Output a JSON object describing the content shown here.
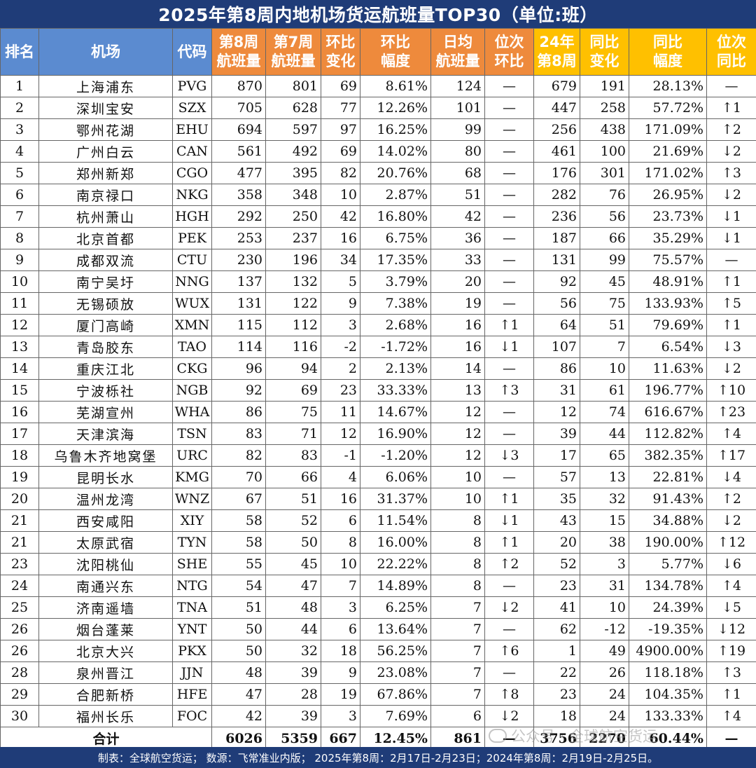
{
  "title": "2025年第8周内地机场货运航班量TOP30（单位:班）",
  "headers": [
    "排名",
    "机场",
    "代码",
    "第8周航班量",
    "第7周航班量",
    "环比变化",
    "环比幅度",
    "日均航班量",
    "位次环比",
    "24年第8周",
    "同比变化",
    "同比幅度",
    "位次同比"
  ],
  "header_lines": [
    [
      "排名"
    ],
    [
      "机场"
    ],
    [
      "代码"
    ],
    [
      "第8周",
      "航班量"
    ],
    [
      "第7周",
      "航班量"
    ],
    [
      "环比",
      "变化"
    ],
    [
      "环比",
      "幅度"
    ],
    [
      "日均",
      "航班量"
    ],
    [
      "位次",
      "环比"
    ],
    [
      "24年",
      "第8周"
    ],
    [
      "同比",
      "变化"
    ],
    [
      "同比",
      "幅度"
    ],
    [
      "位次",
      "同比"
    ]
  ],
  "colors": {
    "title_bg": "#1f3c78",
    "header_blue": "#5b8bd0",
    "header_orange": "#ee8a3c",
    "header_yellow": "#ffc000",
    "up": "#e0201a",
    "down": "#1ea84c"
  },
  "rows": [
    [
      "1",
      "上海浦东",
      "PVG",
      "870",
      "801",
      "69",
      "8.61%",
      "124",
      "—",
      "679",
      "191",
      "28.13%",
      "—"
    ],
    [
      "2",
      "深圳宝安",
      "SZX",
      "705",
      "628",
      "77",
      "12.26%",
      "101",
      "—",
      "447",
      "258",
      "57.72%",
      "↑1"
    ],
    [
      "3",
      "鄂州花湖",
      "EHU",
      "694",
      "597",
      "97",
      "16.25%",
      "99",
      "—",
      "256",
      "438",
      "171.09%",
      "↑2"
    ],
    [
      "4",
      "广州白云",
      "CAN",
      "561",
      "492",
      "69",
      "14.02%",
      "80",
      "—",
      "461",
      "100",
      "21.69%",
      "↓2"
    ],
    [
      "5",
      "郑州新郑",
      "CGO",
      "477",
      "395",
      "82",
      "20.76%",
      "68",
      "—",
      "176",
      "301",
      "171.02%",
      "↑3"
    ],
    [
      "6",
      "南京禄口",
      "NKG",
      "358",
      "348",
      "10",
      "2.87%",
      "51",
      "—",
      "282",
      "76",
      "26.95%",
      "↓2"
    ],
    [
      "7",
      "杭州萧山",
      "HGH",
      "292",
      "250",
      "42",
      "16.80%",
      "42",
      "—",
      "236",
      "56",
      "23.73%",
      "↓1"
    ],
    [
      "8",
      "北京首都",
      "PEK",
      "253",
      "237",
      "16",
      "6.75%",
      "36",
      "—",
      "187",
      "66",
      "35.29%",
      "↓1"
    ],
    [
      "9",
      "成都双流",
      "CTU",
      "230",
      "196",
      "34",
      "17.35%",
      "33",
      "—",
      "131",
      "99",
      "75.57%",
      "—"
    ],
    [
      "10",
      "南宁吴圩",
      "NNG",
      "137",
      "132",
      "5",
      "3.79%",
      "20",
      "—",
      "92",
      "45",
      "48.91%",
      "↑1"
    ],
    [
      "11",
      "无锡硕放",
      "WUX",
      "131",
      "122",
      "9",
      "7.38%",
      "19",
      "—",
      "56",
      "75",
      "133.93%",
      "↑5"
    ],
    [
      "12",
      "厦门高崎",
      "XMN",
      "115",
      "112",
      "3",
      "2.68%",
      "16",
      "↑1",
      "64",
      "51",
      "79.69%",
      "↑1"
    ],
    [
      "13",
      "青岛胶东",
      "TAO",
      "114",
      "116",
      "-2",
      "-1.72%",
      "16",
      "↓1",
      "107",
      "7",
      "6.54%",
      "↓3"
    ],
    [
      "14",
      "重庆江北",
      "CKG",
      "96",
      "94",
      "2",
      "2.13%",
      "14",
      "—",
      "86",
      "10",
      "11.63%",
      "↓2"
    ],
    [
      "15",
      "宁波栎社",
      "NGB",
      "92",
      "69",
      "23",
      "33.33%",
      "13",
      "↑3",
      "31",
      "61",
      "196.77%",
      "↑10"
    ],
    [
      "16",
      "芜湖宣州",
      "WHA",
      "86",
      "75",
      "11",
      "14.67%",
      "12",
      "—",
      "12",
      "74",
      "616.67%",
      "↑23"
    ],
    [
      "17",
      "天津滨海",
      "TSN",
      "83",
      "71",
      "12",
      "16.90%",
      "12",
      "—",
      "39",
      "44",
      "112.82%",
      "↑4"
    ],
    [
      "18",
      "乌鲁木齐地窝堡",
      "URC",
      "82",
      "83",
      "-1",
      "-1.20%",
      "12",
      "↓3",
      "17",
      "65",
      "382.35%",
      "↑17"
    ],
    [
      "19",
      "昆明长水",
      "KMG",
      "70",
      "66",
      "4",
      "6.06%",
      "10",
      "—",
      "57",
      "13",
      "22.81%",
      "↓4"
    ],
    [
      "20",
      "温州龙湾",
      "WNZ",
      "67",
      "51",
      "16",
      "31.37%",
      "10",
      "↑1",
      "35",
      "32",
      "91.43%",
      "↑2"
    ],
    [
      "21",
      "西安咸阳",
      "XIY",
      "58",
      "52",
      "6",
      "11.54%",
      "8",
      "↓1",
      "43",
      "15",
      "34.88%",
      "↓2"
    ],
    [
      "21",
      "太原武宿",
      "TYN",
      "58",
      "50",
      "8",
      "16.00%",
      "8",
      "↑1",
      "20",
      "38",
      "190.00%",
      "↑12"
    ],
    [
      "23",
      "沈阳桃仙",
      "SHE",
      "55",
      "45",
      "10",
      "22.22%",
      "8",
      "↑2",
      "52",
      "3",
      "5.77%",
      "↓6"
    ],
    [
      "24",
      "南通兴东",
      "NTG",
      "54",
      "47",
      "7",
      "14.89%",
      "8",
      "—",
      "23",
      "31",
      "134.78%",
      "↑4"
    ],
    [
      "25",
      "济南遥墙",
      "TNA",
      "51",
      "48",
      "3",
      "6.25%",
      "7",
      "↓2",
      "41",
      "10",
      "24.39%",
      "↓5"
    ],
    [
      "26",
      "烟台蓬莱",
      "YNT",
      "50",
      "44",
      "6",
      "13.64%",
      "7",
      "—",
      "62",
      "-12",
      "-19.35%",
      "↓12"
    ],
    [
      "26",
      "北京大兴",
      "PKX",
      "50",
      "32",
      "18",
      "56.25%",
      "7",
      "↑6",
      "1",
      "49",
      "4900.00%",
      "↑19"
    ],
    [
      "28",
      "泉州晋江",
      "JJN",
      "48",
      "39",
      "9",
      "23.08%",
      "7",
      "—",
      "22",
      "26",
      "118.18%",
      "↑3"
    ],
    [
      "29",
      "合肥新桥",
      "HFE",
      "47",
      "28",
      "19",
      "67.86%",
      "7",
      "↑8",
      "23",
      "24",
      "104.35%",
      "↑1"
    ],
    [
      "30",
      "福州长乐",
      "FOC",
      "42",
      "39",
      "3",
      "7.69%",
      "6",
      "↓2",
      "18",
      "24",
      "133.33%",
      "↑4"
    ]
  ],
  "total": {
    "label": "合计",
    "week8": "6026",
    "week7": "5359",
    "change": "667",
    "pct": "12.45%",
    "daily": "861",
    "rank_hb": "—",
    "y24": "3756",
    "yoy_change": "2270",
    "yoy_pct": "60.44%",
    "rank_yoy": "—"
  },
  "footer": "制表：全球航空货运；  数源：飞常准业内版；  2025年第8周：2月17日-2月23日；2024年第8周：2月19日-2月25日。",
  "watermark": "公众号 · 全球航空货运"
}
